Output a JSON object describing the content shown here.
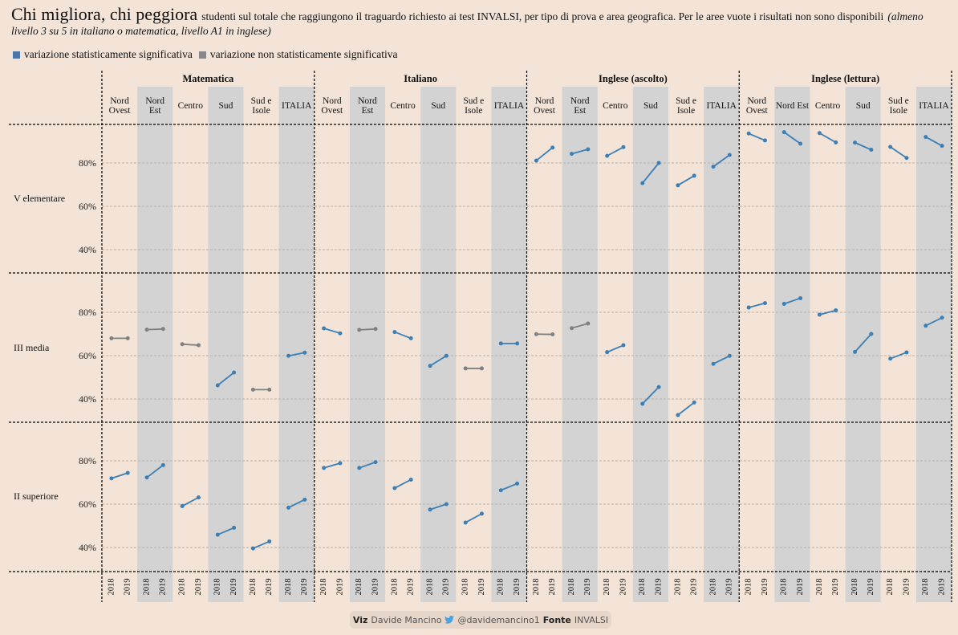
{
  "header": {
    "title": "Chi migliora, chi peggiora",
    "subtitle": "studenti sul totale che raggiungono il traguardo richiesto ai test INVALSI, per tipo di prova e area geografica. Per le aree vuote i risultati non sono disponibili",
    "note": "(almeno livello 3 su 5 in italiano o matematica, livello A1 in inglese)"
  },
  "legend": [
    {
      "label": "variazione statisticamente significativa",
      "color": "#3b7fb6"
    },
    {
      "label": "variazione non statisticamente significativa",
      "color": "#808080"
    }
  ],
  "footer": {
    "viz_label": "Viz",
    "author": "Davide Mancino",
    "twitter": "@davidemancino1",
    "source_label": "Fonte",
    "source": "INVALSI"
  },
  "chart_data": {
    "type": "line",
    "title": "Chi migliora, chi peggiora",
    "colors": {
      "significant": "#3b7fb6",
      "not_significant": "#808080",
      "stripe": "#d3d3d3"
    },
    "y_ticks": [
      "40%",
      "60%",
      "80%"
    ],
    "y_tick_values": [
      40,
      60,
      80
    ],
    "ylim": [
      30,
      98
    ],
    "x_labels": [
      "2018",
      "2019"
    ],
    "subjects": [
      "Matematica",
      "Italiano",
      "Inglese (ascolto)",
      "Inglese (lettura)"
    ],
    "areas": [
      [
        "Nord Ovest",
        "Nord Est",
        "Centro",
        "Sud",
        "Sud e Isole",
        "ITALIA"
      ],
      [
        "Nord Ovest",
        "Nord Est",
        "Centro",
        "Sud",
        "Sud e Isole",
        "ITALIA"
      ],
      [
        "Nord Ovest",
        "Nord Est",
        "Centro",
        "Sud",
        "Sud e Isole",
        "ITALIA"
      ],
      [
        "Nord Ovest",
        "Nord Est",
        "Centro",
        "Sud",
        "Sud e Isole",
        "ITALIA"
      ]
    ],
    "grades": [
      {
        "label": "V elementare",
        "values": [
          null,
          null,
          [
            [
              81.1,
              87.1,
              true
            ],
            [
              84.2,
              86.3,
              true
            ],
            [
              83.3,
              87.3,
              true
            ],
            [
              70.7,
              80.0,
              true
            ],
            [
              69.7,
              74.1,
              true
            ],
            [
              78.3,
              83.7,
              true
            ]
          ],
          [
            [
              93.6,
              90.4,
              true
            ],
            [
              94.2,
              88.9,
              true
            ],
            [
              93.8,
              89.5,
              true
            ],
            [
              89.4,
              86.1,
              true
            ],
            [
              87.4,
              82.3,
              true
            ],
            [
              92.0,
              87.9,
              true
            ]
          ]
        ]
      },
      {
        "label": "III media",
        "values": [
          [
            [
              68.0,
              68.0,
              false
            ],
            [
              72.0,
              72.3,
              false
            ],
            [
              65.3,
              64.8,
              false
            ],
            [
              46.3,
              52.2,
              true
            ],
            [
              44.3,
              44.3,
              false
            ],
            [
              59.9,
              61.4,
              true
            ]
          ],
          [
            [
              72.6,
              70.3,
              true
            ],
            [
              71.9,
              72.3,
              false
            ],
            [
              70.9,
              68.0,
              true
            ],
            [
              55.3,
              59.9,
              true
            ],
            [
              54.1,
              54.1,
              false
            ],
            [
              65.6,
              65.6,
              true
            ]
          ],
          [
            [
              69.9,
              69.8,
              false
            ],
            [
              72.7,
              74.8,
              false
            ],
            [
              61.6,
              64.8,
              true
            ],
            [
              37.8,
              45.5,
              true
            ],
            [
              32.6,
              38.4,
              true
            ],
            [
              56.2,
              59.9,
              true
            ]
          ],
          [
            [
              82.2,
              84.2,
              true
            ],
            [
              83.9,
              86.5,
              true
            ],
            [
              78.9,
              80.9,
              true
            ],
            [
              61.7,
              70.0,
              true
            ],
            [
              58.6,
              61.5,
              true
            ],
            [
              73.8,
              77.5,
              true
            ]
          ]
        ]
      },
      {
        "label": "II superiore",
        "values": [
          [
            [
              71.9,
              74.4,
              true
            ],
            [
              72.3,
              78.0,
              true
            ],
            [
              59.1,
              63.1,
              true
            ],
            [
              45.9,
              49.1,
              true
            ],
            [
              39.6,
              42.8,
              true
            ],
            [
              58.4,
              62.1,
              true
            ]
          ],
          [
            [
              76.7,
              78.9,
              true
            ],
            [
              76.7,
              79.4,
              true
            ],
            [
              67.4,
              71.3,
              true
            ],
            [
              57.5,
              60.0,
              true
            ],
            [
              51.5,
              55.6,
              true
            ],
            [
              66.4,
              69.5,
              true
            ]
          ],
          null,
          null
        ]
      }
    ]
  }
}
